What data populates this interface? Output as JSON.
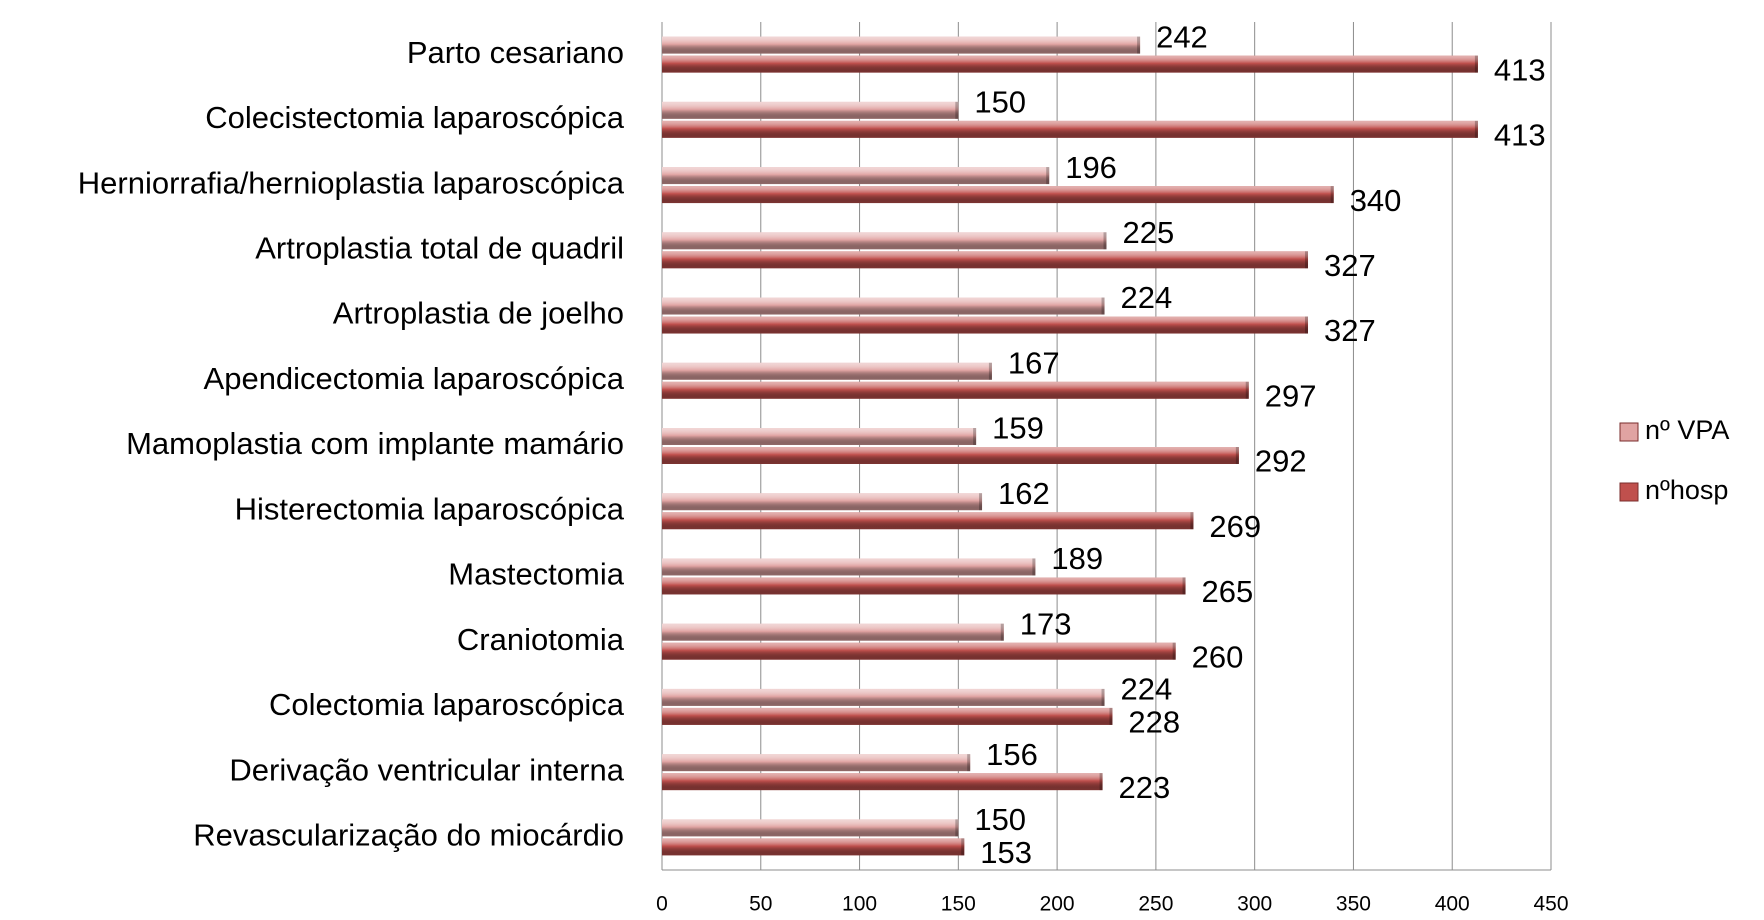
{
  "chart_data": {
    "type": "hbar",
    "categories": [
      "Parto cesariano",
      "Colecistectomia laparoscópica",
      "Herniorrafia/hernioplastia laparoscópica",
      "Artroplastia total de quadril",
      "Artroplastia de joelho",
      "Apendicectomia laparoscópica",
      "Mamoplastia com implante mamário",
      "Histerectomia laparoscópica",
      "Mastectomia",
      "Craniotomia",
      "Colectomia laparoscópica",
      "Derivação ventricular interna",
      "Revascularização do miocárdio"
    ],
    "series": [
      {
        "name": "nº VPA",
        "color": "#e0a3a2",
        "values": [
          242,
          150,
          196,
          225,
          224,
          167,
          159,
          162,
          189,
          173,
          224,
          156,
          150
        ]
      },
      {
        "name": "nºhosp",
        "color": "#c0504d",
        "values": [
          413,
          413,
          340,
          327,
          327,
          297,
          292,
          269,
          265,
          260,
          228,
          223,
          153
        ]
      }
    ],
    "xlim": [
      0,
      450
    ],
    "xticks": [
      0,
      50,
      100,
      150,
      200,
      250,
      300,
      350,
      400,
      450
    ],
    "grid": true,
    "legend": "right"
  }
}
